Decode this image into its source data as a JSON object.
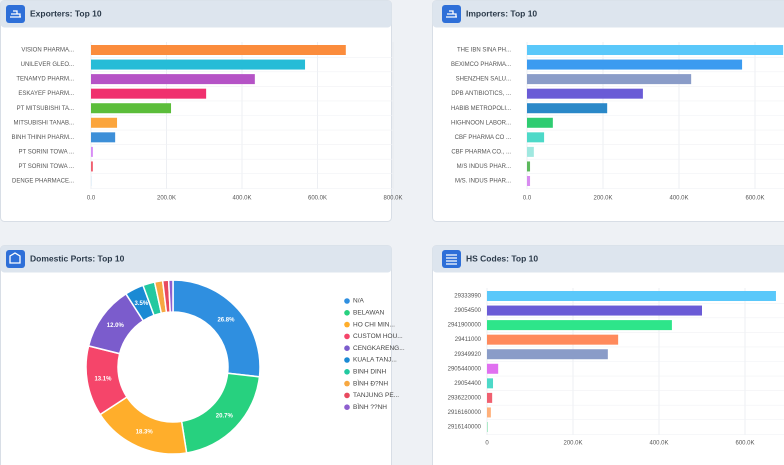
{
  "chart_data": [
    {
      "type": "bar",
      "orientation": "horizontal",
      "title": "Exporters: Top 10",
      "categories": [
        "VISION PHARMA...",
        "UNILEVER GLEO...",
        "TENAMYD PHARM...",
        "ESKAYEF PHARM...",
        "PT MITSUBISHI TA...",
        "MITSUBISHI TANAB...",
        "BINH THINH PHARM...",
        "PT SORINI TOWA ...",
        "PT SORINI TOWA ...",
        "DENGE PHARMACE..."
      ],
      "values": [
        675000,
        567000,
        434000,
        305000,
        212000,
        69000,
        64000,
        5000,
        5000,
        500
      ],
      "colors": [
        "#fb8c3c",
        "#26bcd7",
        "#b553c6",
        "#f0306e",
        "#5bbd3a",
        "#fba53c",
        "#3d8fd8",
        "#d78cf5",
        "#f06070",
        "#9ad0f5"
      ],
      "xlim": [
        0,
        800000
      ],
      "xticks": [
        {
          "value": 0,
          "label": "0.0"
        },
        {
          "value": 200000,
          "label": "200.0K"
        },
        {
          "value": 400000,
          "label": "400.0K"
        },
        {
          "value": 600000,
          "label": "600.0K"
        },
        {
          "value": 800000,
          "label": "800.0K"
        }
      ],
      "grid": true
    },
    {
      "type": "bar",
      "orientation": "horizontal",
      "title": "Importers: Top 10",
      "categories": [
        "THE IBN SINA PH...",
        "BEXIMCO PHARMA...",
        "SHENZHEN SALU...",
        "DPB ANTIBIOTICS, ...",
        "HABIB METROPOLI...",
        "HIGHNOON LABOR...",
        "CBF PHARMA CO ...",
        "CBF PHARMA CO., ...",
        "M/S INDUS PHAR...",
        "M/S. INDUS PHAR..."
      ],
      "values": [
        674000,
        566000,
        432000,
        305000,
        211000,
        68000,
        45000,
        18000,
        8000,
        8000
      ],
      "colors": [
        "#5ac8fa",
        "#3b9bf0",
        "#8a9cc8",
        "#6a5bd6",
        "#2a88c8",
        "#2ecc71",
        "#4dd9c8",
        "#a0e8e0",
        "#5cb85c",
        "#d88cf0"
      ],
      "xlim": [
        0,
        800000
      ],
      "xticks": [
        {
          "value": 0,
          "label": "0.0"
        },
        {
          "value": 200000,
          "label": "200.0K"
        },
        {
          "value": 400000,
          "label": "400.0K"
        },
        {
          "value": 600000,
          "label": "600.0K"
        }
      ],
      "grid": true
    },
    {
      "type": "donut",
      "title": "Domestic Ports: Top 10",
      "categories": [
        "N/A",
        "BELAWAN",
        "HO CHI MIN...",
        "CUSTOM HOU...",
        "CENGKARENG...",
        "KUALA TANJ...",
        "BINH DINH",
        "BÌNH Đ?NH",
        "TANJUNG PE...",
        "BÌNH ??NH"
      ],
      "values": [
        26.8,
        20.7,
        18.3,
        13.1,
        12.0,
        3.5,
        2.2,
        1.5,
        1.1,
        0.8
      ],
      "value_labels": [
        "26.8%",
        "20.7%",
        "18.3%",
        "13.1%",
        "12.0%",
        "3.5%",
        null,
        null,
        null,
        null
      ],
      "colors": [
        "#2f8fe0",
        "#27d17f",
        "#ffae2b",
        "#f5456a",
        "#7b5ccc",
        "#1a8ad4",
        "#22c9a0",
        "#f7a841",
        "#e84a5f",
        "#8e5fcf"
      ]
    },
    {
      "type": "bar",
      "orientation": "horizontal",
      "title": "HS Codes: Top 10",
      "categories": [
        "29333990",
        "29054500",
        "2941900000",
        "29411000",
        "29349920",
        "2905440000",
        "29054400",
        "2936220000",
        "2916160000",
        "2916140000"
      ],
      "values": [
        672000,
        500000,
        430000,
        305000,
        281000,
        26000,
        14000,
        12000,
        9000,
        2000
      ],
      "colors": [
        "#5ac8fa",
        "#6a5bd6",
        "#2ee58a",
        "#ff8a5c",
        "#8a9cc8",
        "#e070f0",
        "#4dd9c8",
        "#f06070",
        "#ffb07a",
        "#a0e8c0"
      ],
      "xlim": [
        0,
        800000
      ],
      "xticks": [
        0,
        {
          "value": 200000,
          "label": "200.0K"
        },
        {
          "value": 400000,
          "label": "400.0K"
        },
        {
          "value": 600000,
          "label": "600.0K"
        }
      ],
      "grid": true
    }
  ]
}
